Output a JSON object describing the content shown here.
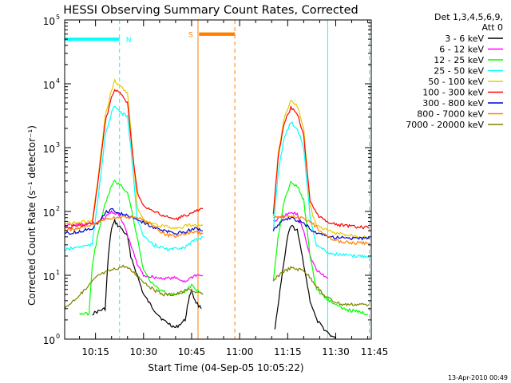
{
  "chart_data": {
    "type": "line",
    "title": "HESSI Observing Summary Count Rates, Corrected",
    "xlabel": "Start Time (04-Sep-05 10:05:22)",
    "ylabel": "Corrected Count Rate (s⁻¹ detector⁻¹)",
    "yscale": "log",
    "xlim": [
      5.37,
      101.1
    ],
    "ylim": [
      1,
      100000
    ],
    "x_unit": "minutes after 10:00 UT",
    "xticks": [
      {
        "value": 15,
        "label": "10:15"
      },
      {
        "value": 30,
        "label": "10:30"
      },
      {
        "value": 45,
        "label": "10:45"
      },
      {
        "value": 60,
        "label": "11:00"
      },
      {
        "value": 75,
        "label": "11:15"
      },
      {
        "value": 90,
        "label": "11:30"
      },
      {
        "value": 105,
        "label": "11:45"
      }
    ],
    "yticks": [
      {
        "value": 1,
        "base": "10",
        "exp": "0"
      },
      {
        "value": 10,
        "base": "10",
        "exp": "1"
      },
      {
        "value": 100,
        "base": "10",
        "exp": "2"
      },
      {
        "value": 1000,
        "base": "10",
        "exp": "3"
      },
      {
        "value": 10000,
        "base": "10",
        "exp": "4"
      },
      {
        "value": 100000,
        "base": "10",
        "exp": "5"
      }
    ],
    "legend_header": [
      "Det 1,3,4,5,6,9,",
      "Att 0"
    ],
    "legend_placement": "right, outside plot",
    "footer_date": "13-Apr-2010 00:49",
    "annotations": [
      {
        "label": "N",
        "color": "#00ffff",
        "bar": [
          5.37,
          22.5
        ],
        "bar_y": 50000,
        "dashed_x": [
          22.5,
          100.5
        ],
        "solid_x": [
          87.5
        ]
      },
      {
        "label": "S",
        "color": "#ff8000",
        "bar": [
          47.5,
          58.5
        ],
        "bar_y": 60000,
        "solid_x": [
          47
        ],
        "dashed_x": [
          58.5
        ]
      }
    ],
    "gap": [
      48.5,
      70.5
    ],
    "series": [
      {
        "name": "3 - 6 keV",
        "color": "#000000",
        "values": [
          {
            "x": 14,
            "y": 2.5
          },
          {
            "x": 18,
            "y": 3
          },
          {
            "x": 19,
            "y": 20
          },
          {
            "x": 20,
            "y": 55
          },
          {
            "x": 21,
            "y": 70
          },
          {
            "x": 22,
            "y": 60
          },
          {
            "x": 23,
            "y": 55
          },
          {
            "x": 25,
            "y": 40
          },
          {
            "x": 26,
            "y": 20
          },
          {
            "x": 28,
            "y": 10
          },
          {
            "x": 30,
            "y": 5
          },
          {
            "x": 33,
            "y": 3
          },
          {
            "x": 36,
            "y": 2
          },
          {
            "x": 40,
            "y": 1.5
          },
          {
            "x": 43,
            "y": 2
          },
          {
            "x": 44,
            "y": 4
          },
          {
            "x": 45,
            "y": 6
          },
          {
            "x": 46,
            "y": 4
          },
          {
            "x": 48,
            "y": 3
          },
          {
            "x": 71,
            "y": 1.5
          },
          {
            "x": 73,
            "y": 8
          },
          {
            "x": 75,
            "y": 40
          },
          {
            "x": 76,
            "y": 60
          },
          {
            "x": 78,
            "y": 50
          },
          {
            "x": 80,
            "y": 15
          },
          {
            "x": 82,
            "y": 4
          },
          {
            "x": 84,
            "y": 2
          },
          {
            "x": 86,
            "y": 1.5
          },
          {
            "x": 88,
            "y": 1.2
          },
          {
            "x": 90,
            "y": 1
          }
        ]
      },
      {
        "name": "6 - 12 keV",
        "color": "#ff00ff",
        "values": [
          {
            "x": 5.37,
            "y": 60
          },
          {
            "x": 10,
            "y": 62
          },
          {
            "x": 15,
            "y": 65
          },
          {
            "x": 18,
            "y": 80
          },
          {
            "x": 20,
            "y": 100
          },
          {
            "x": 22,
            "y": 90
          },
          {
            "x": 24,
            "y": 60
          },
          {
            "x": 26,
            "y": 30
          },
          {
            "x": 28,
            "y": 15
          },
          {
            "x": 30,
            "y": 10
          },
          {
            "x": 35,
            "y": 9
          },
          {
            "x": 40,
            "y": 9
          },
          {
            "x": 43,
            "y": 8
          },
          {
            "x": 46,
            "y": 10
          },
          {
            "x": 48.5,
            "y": 10
          },
          {
            "x": 70.5,
            "y": 70
          },
          {
            "x": 73,
            "y": 80
          },
          {
            "x": 76,
            "y": 95
          },
          {
            "x": 78,
            "y": 90
          },
          {
            "x": 80,
            "y": 50
          },
          {
            "x": 82,
            "y": 20
          },
          {
            "x": 84,
            "y": 12
          },
          {
            "x": 86,
            "y": 10
          },
          {
            "x": 87.5,
            "y": 9
          }
        ]
      },
      {
        "name": "12 - 25 keV",
        "color": "#00ff00",
        "values": [
          {
            "x": 10,
            "y": 2.5
          },
          {
            "x": 13,
            "y": 2.5
          },
          {
            "x": 14,
            "y": 15
          },
          {
            "x": 16,
            "y": 50
          },
          {
            "x": 18,
            "y": 130
          },
          {
            "x": 20,
            "y": 250
          },
          {
            "x": 21,
            "y": 300
          },
          {
            "x": 23,
            "y": 250
          },
          {
            "x": 25,
            "y": 200
          },
          {
            "x": 26,
            "y": 120
          },
          {
            "x": 28,
            "y": 40
          },
          {
            "x": 30,
            "y": 12
          },
          {
            "x": 33,
            "y": 7
          },
          {
            "x": 38,
            "y": 5
          },
          {
            "x": 42,
            "y": 5
          },
          {
            "x": 45,
            "y": 7
          },
          {
            "x": 48.5,
            "y": 5
          },
          {
            "x": 70.5,
            "y": 8
          },
          {
            "x": 72,
            "y": 40
          },
          {
            "x": 74,
            "y": 150
          },
          {
            "x": 76,
            "y": 280
          },
          {
            "x": 78,
            "y": 250
          },
          {
            "x": 80,
            "y": 150
          },
          {
            "x": 82,
            "y": 20
          },
          {
            "x": 84,
            "y": 6
          },
          {
            "x": 88,
            "y": 4
          },
          {
            "x": 92,
            "y": 3
          },
          {
            "x": 100,
            "y": 2.5
          }
        ]
      },
      {
        "name": "25 - 50 keV",
        "color": "#00ffff",
        "values": [
          {
            "x": 5.37,
            "y": 25
          },
          {
            "x": 10,
            "y": 28
          },
          {
            "x": 14,
            "y": 30
          },
          {
            "x": 16,
            "y": 200
          },
          {
            "x": 18,
            "y": 1500
          },
          {
            "x": 20,
            "y": 3500
          },
          {
            "x": 21,
            "y": 4500
          },
          {
            "x": 23,
            "y": 3500
          },
          {
            "x": 25,
            "y": 3000
          },
          {
            "x": 26,
            "y": 1000
          },
          {
            "x": 28,
            "y": 80
          },
          {
            "x": 30,
            "y": 40
          },
          {
            "x": 33,
            "y": 30
          },
          {
            "x": 38,
            "y": 25
          },
          {
            "x": 43,
            "y": 28
          },
          {
            "x": 46,
            "y": 35
          },
          {
            "x": 48.5,
            "y": 40
          },
          {
            "x": 70.5,
            "y": 50
          },
          {
            "x": 72,
            "y": 400
          },
          {
            "x": 74,
            "y": 1500
          },
          {
            "x": 76,
            "y": 2500
          },
          {
            "x": 78,
            "y": 2000
          },
          {
            "x": 80,
            "y": 1000
          },
          {
            "x": 82,
            "y": 80
          },
          {
            "x": 84,
            "y": 30
          },
          {
            "x": 88,
            "y": 22
          },
          {
            "x": 95,
            "y": 20
          },
          {
            "x": 100.5,
            "y": 20
          }
        ]
      },
      {
        "name": "50 - 100 keV",
        "color": "#e8c800",
        "values": [
          {
            "x": 5.37,
            "y": 65
          },
          {
            "x": 10,
            "y": 68
          },
          {
            "x": 14,
            "y": 70
          },
          {
            "x": 16,
            "y": 400
          },
          {
            "x": 18,
            "y": 3000
          },
          {
            "x": 20,
            "y": 8000
          },
          {
            "x": 21,
            "y": 11000
          },
          {
            "x": 23,
            "y": 9000
          },
          {
            "x": 25,
            "y": 7000
          },
          {
            "x": 26,
            "y": 2000
          },
          {
            "x": 28,
            "y": 120
          },
          {
            "x": 30,
            "y": 70
          },
          {
            "x": 35,
            "y": 60
          },
          {
            "x": 40,
            "y": 55
          },
          {
            "x": 44,
            "y": 60
          },
          {
            "x": 46,
            "y": 60
          },
          {
            "x": 48.5,
            "y": 60
          },
          {
            "x": 70.5,
            "y": 80
          },
          {
            "x": 72,
            "y": 800
          },
          {
            "x": 74,
            "y": 3000
          },
          {
            "x": 76,
            "y": 5500
          },
          {
            "x": 78,
            "y": 4500
          },
          {
            "x": 80,
            "y": 2000
          },
          {
            "x": 82,
            "y": 120
          },
          {
            "x": 84,
            "y": 60
          },
          {
            "x": 90,
            "y": 45
          },
          {
            "x": 100.5,
            "y": 40
          }
        ]
      },
      {
        "name": "100 - 300 keV",
        "color": "#ff0000",
        "values": [
          {
            "x": 5.37,
            "y": 55
          },
          {
            "x": 10,
            "y": 60
          },
          {
            "x": 14,
            "y": 65
          },
          {
            "x": 16,
            "y": 350
          },
          {
            "x": 18,
            "y": 2500
          },
          {
            "x": 20,
            "y": 6000
          },
          {
            "x": 21,
            "y": 8000
          },
          {
            "x": 23,
            "y": 7000
          },
          {
            "x": 25,
            "y": 5000
          },
          {
            "x": 26,
            "y": 1500
          },
          {
            "x": 28,
            "y": 200
          },
          {
            "x": 30,
            "y": 120
          },
          {
            "x": 35,
            "y": 90
          },
          {
            "x": 40,
            "y": 75
          },
          {
            "x": 44,
            "y": 90
          },
          {
            "x": 46,
            "y": 100
          },
          {
            "x": 48.5,
            "y": 110
          },
          {
            "x": 70.5,
            "y": 90
          },
          {
            "x": 72,
            "y": 700
          },
          {
            "x": 74,
            "y": 2500
          },
          {
            "x": 76,
            "y": 4200
          },
          {
            "x": 78,
            "y": 3500
          },
          {
            "x": 80,
            "y": 1500
          },
          {
            "x": 82,
            "y": 150
          },
          {
            "x": 84,
            "y": 90
          },
          {
            "x": 88,
            "y": 65
          },
          {
            "x": 95,
            "y": 58
          },
          {
            "x": 100.5,
            "y": 55
          }
        ]
      },
      {
        "name": "300 - 800 keV",
        "color": "#0000c8",
        "values": [
          {
            "x": 5.37,
            "y": 45
          },
          {
            "x": 10,
            "y": 48
          },
          {
            "x": 14,
            "y": 55
          },
          {
            "x": 16,
            "y": 70
          },
          {
            "x": 18,
            "y": 95
          },
          {
            "x": 20,
            "y": 110
          },
          {
            "x": 22,
            "y": 95
          },
          {
            "x": 25,
            "y": 85
          },
          {
            "x": 28,
            "y": 75
          },
          {
            "x": 32,
            "y": 60
          },
          {
            "x": 36,
            "y": 50
          },
          {
            "x": 40,
            "y": 45
          },
          {
            "x": 43,
            "y": 48
          },
          {
            "x": 46,
            "y": 55
          },
          {
            "x": 48.5,
            "y": 50
          },
          {
            "x": 70.5,
            "y": 50
          },
          {
            "x": 73,
            "y": 70
          },
          {
            "x": 76,
            "y": 80
          },
          {
            "x": 80,
            "y": 65
          },
          {
            "x": 84,
            "y": 45
          },
          {
            "x": 88,
            "y": 40
          },
          {
            "x": 95,
            "y": 38
          },
          {
            "x": 100.5,
            "y": 37
          }
        ]
      },
      {
        "name": "800 - 7000 keV",
        "color": "#ff8000",
        "values": [
          {
            "x": 5.37,
            "y": 50
          },
          {
            "x": 10,
            "y": 55
          },
          {
            "x": 14,
            "y": 60
          },
          {
            "x": 17,
            "y": 70
          },
          {
            "x": 20,
            "y": 80
          },
          {
            "x": 24,
            "y": 82
          },
          {
            "x": 28,
            "y": 80
          },
          {
            "x": 32,
            "y": 65
          },
          {
            "x": 36,
            "y": 45
          },
          {
            "x": 40,
            "y": 40
          },
          {
            "x": 43,
            "y": 45
          },
          {
            "x": 46,
            "y": 48
          },
          {
            "x": 48.5,
            "y": 45
          },
          {
            "x": 70.5,
            "y": 80
          },
          {
            "x": 74,
            "y": 85
          },
          {
            "x": 78,
            "y": 82
          },
          {
            "x": 82,
            "y": 70
          },
          {
            "x": 86,
            "y": 45
          },
          {
            "x": 90,
            "y": 35
          },
          {
            "x": 95,
            "y": 32
          },
          {
            "x": 100.5,
            "y": 32
          }
        ]
      },
      {
        "name": "7000 - 20000 keV",
        "color": "#808000",
        "values": [
          {
            "x": 5.37,
            "y": 3
          },
          {
            "x": 8,
            "y": 4
          },
          {
            "x": 12,
            "y": 6
          },
          {
            "x": 14,
            "y": 8
          },
          {
            "x": 16,
            "y": 10
          },
          {
            "x": 18,
            "y": 11
          },
          {
            "x": 20,
            "y": 12
          },
          {
            "x": 22,
            "y": 13
          },
          {
            "x": 24,
            "y": 14
          },
          {
            "x": 27,
            "y": 11
          },
          {
            "x": 30,
            "y": 8
          },
          {
            "x": 33,
            "y": 6
          },
          {
            "x": 36,
            "y": 5
          },
          {
            "x": 40,
            "y": 5
          },
          {
            "x": 44,
            "y": 6
          },
          {
            "x": 48.5,
            "y": 5
          },
          {
            "x": 70.5,
            "y": 8
          },
          {
            "x": 73,
            "y": 11
          },
          {
            "x": 76,
            "y": 13
          },
          {
            "x": 80,
            "y": 12
          },
          {
            "x": 83,
            "y": 8
          },
          {
            "x": 86,
            "y": 5
          },
          {
            "x": 89,
            "y": 4
          },
          {
            "x": 92,
            "y": 3.5
          },
          {
            "x": 100.5,
            "y": 3.5
          }
        ]
      }
    ]
  }
}
